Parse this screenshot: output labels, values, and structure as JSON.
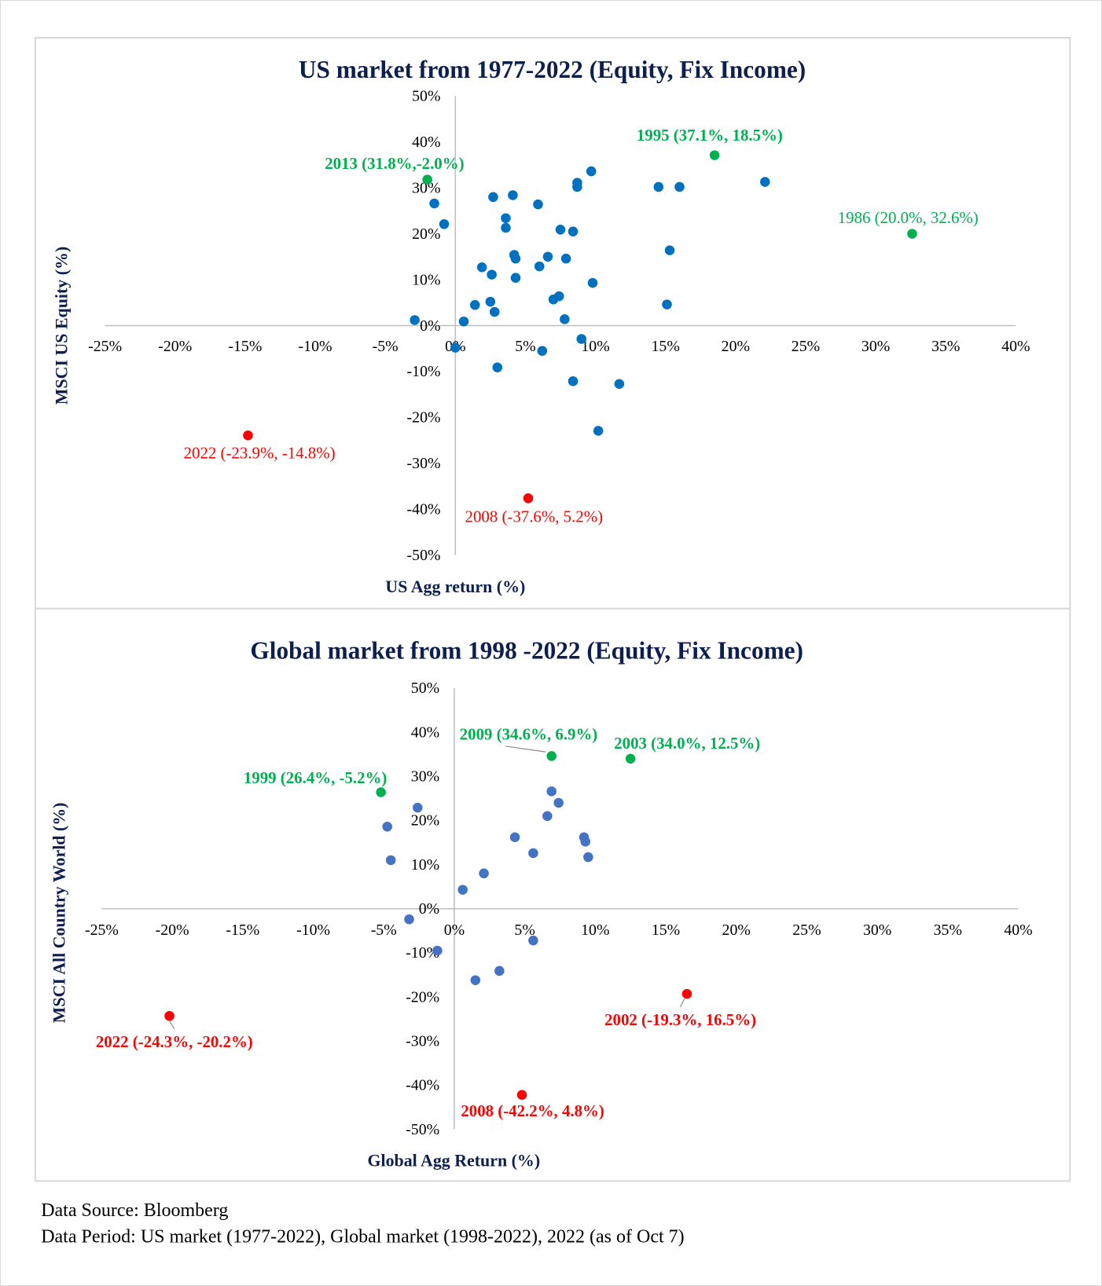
{
  "colors": {
    "normal": "#0070C0",
    "normal_global": "#4472C4",
    "good": "#00B050",
    "bad": "#FF0000",
    "title": "#0d1f4f"
  },
  "chart_data": [
    {
      "type": "scatter",
      "title": "US market from 1977-2022 (Equity, Fix Income)",
      "xlabel": "US Agg return (%)",
      "ylabel": "MSCI US Equity (%)",
      "xlim": [
        -25,
        40
      ],
      "ylim": [
        -50,
        50
      ],
      "x_ticks": [
        "-25%",
        "-20%",
        "-15%",
        "-10%",
        "-5%",
        "0%",
        "5%",
        "10%",
        "15%",
        "20%",
        "25%",
        "30%",
        "35%",
        "40%"
      ],
      "y_ticks": [
        "50%",
        "40%",
        "30%",
        "20%",
        "10%",
        "0%",
        "-10%",
        "-20%",
        "-30%",
        "-40%",
        "-50%"
      ],
      "grid": false,
      "points": [
        [
          -1.5,
          26.6
        ],
        [
          -0.8,
          22.1
        ],
        [
          -2.9,
          1.2
        ],
        [
          0.0,
          -4.8
        ],
        [
          0.6,
          0.9
        ],
        [
          1.4,
          4.5
        ],
        [
          1.9,
          12.7
        ],
        [
          2.5,
          5.2
        ],
        [
          2.6,
          11.1
        ],
        [
          2.8,
          3.0
        ],
        [
          2.7,
          28.0
        ],
        [
          3.0,
          -9.1
        ],
        [
          3.6,
          23.4
        ],
        [
          3.6,
          21.3
        ],
        [
          4.1,
          28.4
        ],
        [
          4.2,
          15.4
        ],
        [
          4.3,
          14.6
        ],
        [
          4.3,
          10.4
        ],
        [
          5.9,
          26.4
        ],
        [
          6.0,
          12.9
        ],
        [
          6.2,
          -5.5
        ],
        [
          6.6,
          15.0
        ],
        [
          7.0,
          5.7
        ],
        [
          7.4,
          6.4
        ],
        [
          7.5,
          20.9
        ],
        [
          7.8,
          1.4
        ],
        [
          7.9,
          14.6
        ],
        [
          8.4,
          20.5
        ],
        [
          8.4,
          -12.1
        ],
        [
          8.7,
          31.1
        ],
        [
          8.7,
          30.2
        ],
        [
          9.0,
          -2.9
        ],
        [
          9.7,
          33.6
        ],
        [
          9.8,
          9.3
        ],
        [
          10.2,
          -22.9
        ],
        [
          11.7,
          -12.7
        ],
        [
          14.5,
          30.2
        ],
        [
          15.1,
          4.6
        ],
        [
          15.3,
          16.4
        ],
        [
          16.0,
          30.2
        ],
        [
          22.1,
          31.3
        ]
      ],
      "highlights": [
        {
          "label": "2013 (31.8%,-2.0%)",
          "x": -2.0,
          "y": 31.8,
          "kind": "good"
        },
        {
          "label": "1995 (37.1%, 18.5%)",
          "x": 18.5,
          "y": 37.1,
          "kind": "good"
        },
        {
          "label": "1986 (20.0%, 32.6%)",
          "x": 32.6,
          "y": 20.0,
          "kind": "good"
        },
        {
          "label": "2022 (-23.9%, -14.8%)",
          "x": -14.8,
          "y": -23.9,
          "kind": "bad"
        },
        {
          "label": "2008 (-37.6%, 5.2%)",
          "x": 5.2,
          "y": -37.6,
          "kind": "bad"
        }
      ]
    },
    {
      "type": "scatter",
      "title": "Global market from 1998 -2022 (Equity, Fix Income)",
      "xlabel": "Global Agg Return (%)",
      "ylabel": "MSCI All Country World (%)",
      "xlim": [
        -25,
        40
      ],
      "ylim": [
        -50,
        50
      ],
      "x_ticks": [
        "-25%",
        "-20%",
        "-15%",
        "-10%",
        "-5%",
        "0%",
        "5%",
        "10%",
        "15%",
        "20%",
        "25%",
        "30%",
        "35%",
        "40%"
      ],
      "y_ticks": [
        "50%",
        "40%",
        "30%",
        "20%",
        "10%",
        "0%",
        "-10%",
        "-20%",
        "-30%",
        "-40%",
        "-50%"
      ],
      "grid": false,
      "points": [
        [
          -2.6,
          22.9
        ],
        [
          -4.75,
          18.6
        ],
        [
          -4.5,
          11.0
        ],
        [
          -3.2,
          -2.4
        ],
        [
          -1.2,
          -9.5
        ],
        [
          0.6,
          4.3
        ],
        [
          1.5,
          -16.2
        ],
        [
          2.1,
          8.0
        ],
        [
          3.2,
          -14.1
        ],
        [
          4.3,
          16.2
        ],
        [
          5.6,
          12.6
        ],
        [
          5.6,
          -7.2
        ],
        [
          6.6,
          21.0
        ],
        [
          6.9,
          26.6
        ],
        [
          7.4,
          24.0
        ],
        [
          9.2,
          16.2
        ],
        [
          9.3,
          15.2
        ],
        [
          9.5,
          11.7
        ]
      ],
      "highlights": [
        {
          "label": "1999 (26.4%, -5.2%)",
          "x": -5.2,
          "y": 26.4,
          "kind": "good"
        },
        {
          "label": "2009 (34.6%, 6.9%)",
          "x": 6.9,
          "y": 34.6,
          "kind": "good"
        },
        {
          "label": "2003 (34.0%, 12.5%)",
          "x": 12.5,
          "y": 34.0,
          "kind": "good"
        },
        {
          "label": "2022 (-24.3%, -20.2%)",
          "x": -20.2,
          "y": -24.3,
          "kind": "bad"
        },
        {
          "label": "2002 (-19.3%, 16.5%)",
          "x": 16.5,
          "y": -19.3,
          "kind": "bad"
        },
        {
          "label": "2008 (-42.2%, 4.8%)",
          "x": 4.8,
          "y": -42.2,
          "kind": "bad"
        }
      ]
    }
  ],
  "footnotes": {
    "source": "Data Source: Bloomberg",
    "period": "Data Period: US market (1977-2022), Global market (1998-2022), 2022 (as of Oct 7)"
  }
}
